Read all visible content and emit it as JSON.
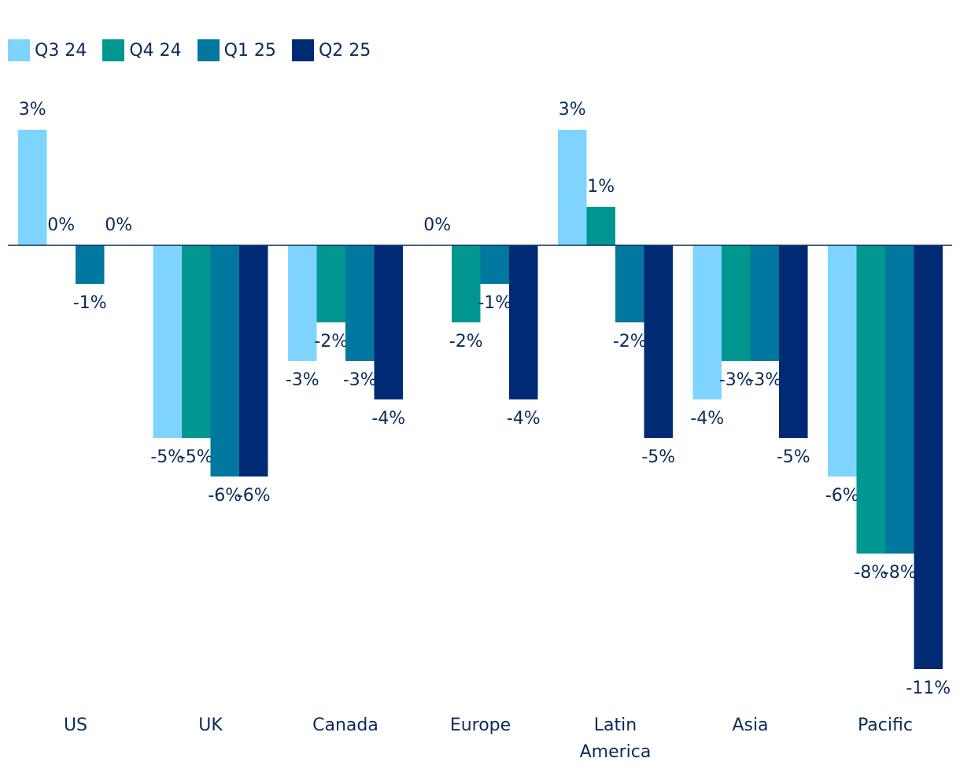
{
  "chart_data": {
    "type": "bar",
    "title": "",
    "xlabel": "",
    "ylabel": "",
    "ylim": [
      -11,
      3
    ],
    "grid": false,
    "legend_position": "top-left",
    "categories": [
      [
        "US"
      ],
      [
        "UK"
      ],
      [
        "Canada"
      ],
      [
        "Europe"
      ],
      [
        "Latin",
        "America"
      ],
      [
        "Asia"
      ],
      [
        "Pacific"
      ]
    ],
    "series": [
      {
        "name": "Q3 24",
        "color": "#7fd4ff",
        "values": [
          3,
          -5,
          -3,
          0,
          3,
          -4,
          -6
        ],
        "labels": [
          "3%",
          "-5%",
          "-3%",
          "0%",
          "3%",
          "-4%",
          "-6%"
        ]
      },
      {
        "name": "Q4 24",
        "color": "#009790",
        "values": [
          0,
          -5,
          -2,
          -2,
          1,
          -3,
          -8
        ],
        "labels": [
          "0%",
          "-5%",
          "-2%",
          "-2%",
          "1%",
          "-3%",
          "-8%"
        ]
      },
      {
        "name": "Q1 25",
        "color": "#00779e",
        "values": [
          -1,
          -6,
          -3,
          -1,
          -2,
          -3,
          -8
        ],
        "labels": [
          "-1%",
          "-6%",
          "-3%",
          "-1%",
          "-2%",
          "-3%",
          "-8%"
        ]
      },
      {
        "name": "Q2 25",
        "color": "#002a73",
        "values": [
          0,
          -6,
          -4,
          -4,
          -5,
          -5,
          -11
        ],
        "labels": [
          "0%",
          "-6%",
          "-4%",
          "-4%",
          "-5%",
          "-5%",
          "-11%"
        ]
      }
    ],
    "text_color": "#0b2a5b",
    "axis_color": "#0b2a5b"
  }
}
